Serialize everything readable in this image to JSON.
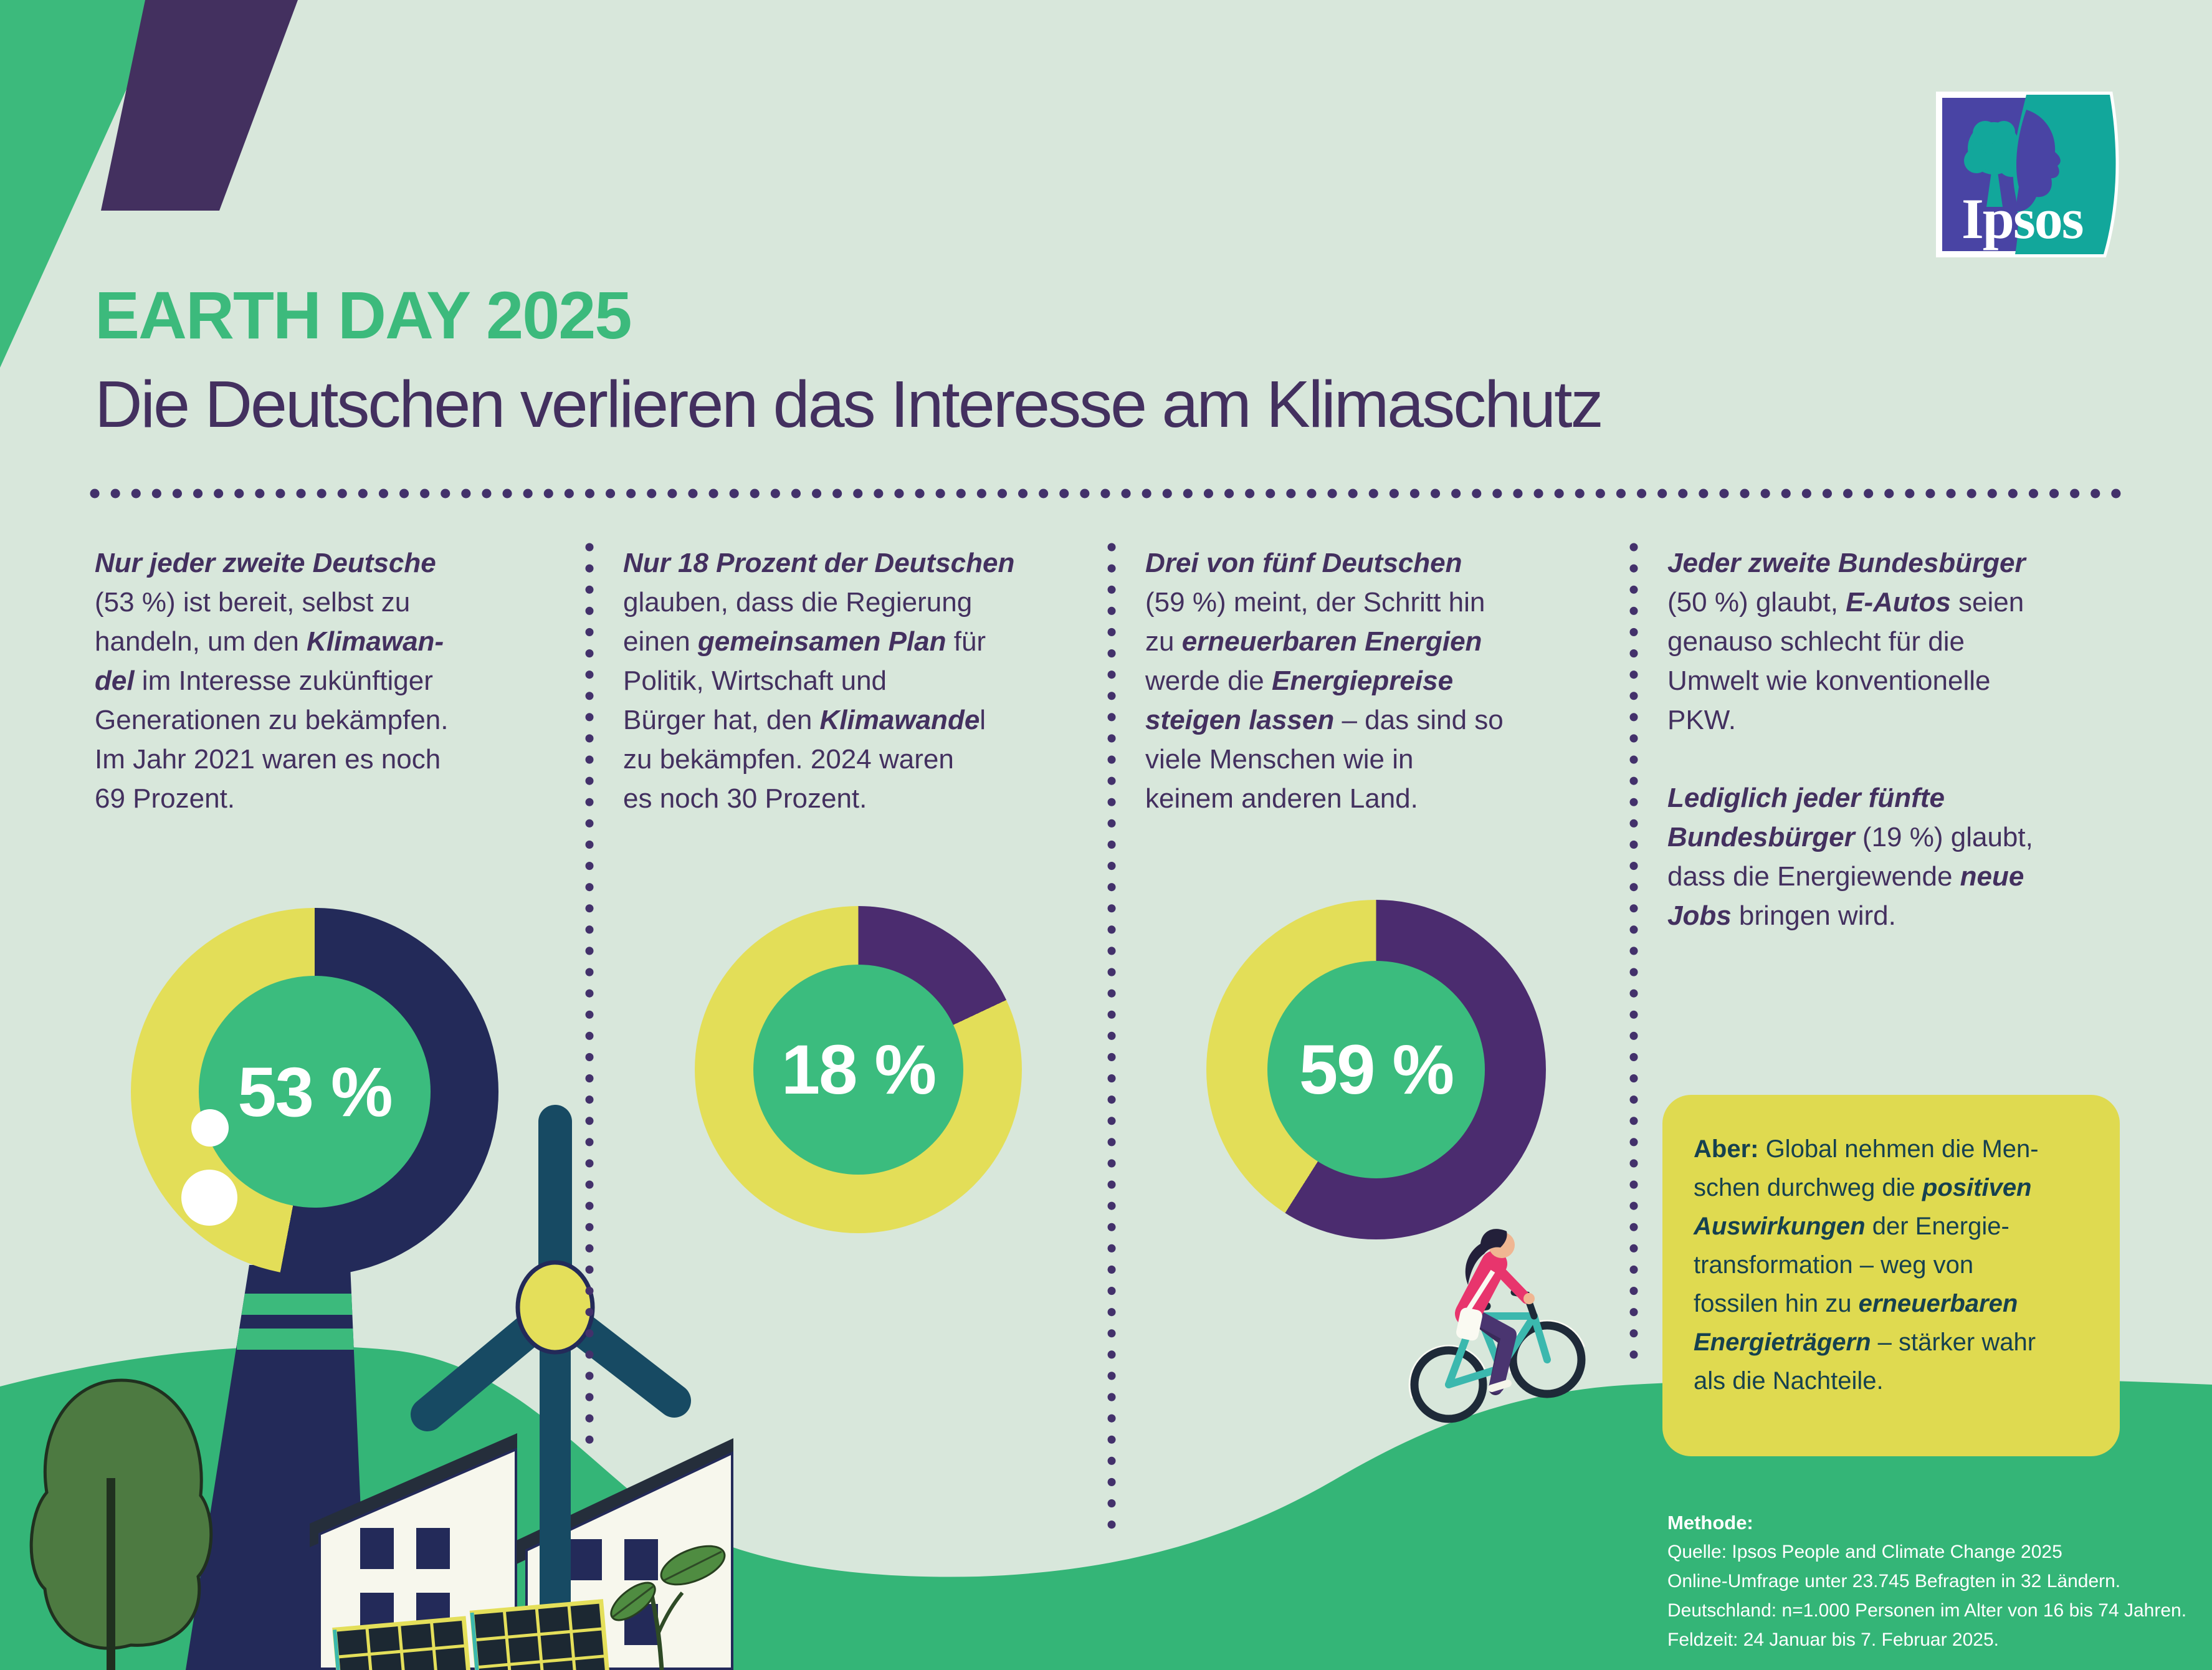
{
  "header": {
    "kicker": "EARTH DAY 2025",
    "headline": "Die Deutschen verlieren das Interesse am Klimaschutz"
  },
  "logo": {
    "brand": "Ipsos"
  },
  "colors": {
    "background": "#D8E7DB",
    "green": "#3CBA7C",
    "hill_green": "#34B577",
    "navy": "#232A59",
    "purple_text": "#43305F",
    "donut_purple": "#4B2C6F",
    "ring_yellow": "#E3DE58",
    "box_yellow": "#DFDA50",
    "box_text": "#16414F",
    "ipsos_indigo": "#4944A4",
    "ipsos_teal": "#12A79B"
  },
  "columns": [
    {
      "lines": [
        [
          {
            "t": "Nur jeder zweite Deutsche",
            "s": "bi"
          }
        ],
        [
          {
            "t": "(53 %) ist bereit, selbst zu"
          }
        ],
        [
          {
            "t": "handeln, um den "
          },
          {
            "t": "Klimawan-",
            "s": "bi"
          }
        ],
        [
          {
            "t": "del",
            "s": "bi"
          },
          {
            "t": " im Interesse zukünftiger"
          }
        ],
        [
          {
            "t": "Generationen zu bekämpfen."
          }
        ],
        [
          {
            "t": "Im Jahr 2021 waren es noch"
          }
        ],
        [
          {
            "t": "69 Prozent."
          }
        ]
      ]
    },
    {
      "lines": [
        [
          {
            "t": "Nur 18 Prozent der Deutschen",
            "s": "bi"
          }
        ],
        [
          {
            "t": "glauben, dass die Regierung"
          }
        ],
        [
          {
            "t": "einen "
          },
          {
            "t": "gemeinsamen Plan",
            "s": "bi"
          },
          {
            "t": " für"
          }
        ],
        [
          {
            "t": "Politik, Wirtschaft und"
          }
        ],
        [
          {
            "t": "Bürger hat, den "
          },
          {
            "t": "Klimawande",
            "s": "bi"
          },
          {
            "t": "l"
          }
        ],
        [
          {
            "t": "zu bekämpfen. 2024 waren"
          }
        ],
        [
          {
            "t": "es noch 30 Prozent."
          }
        ]
      ]
    },
    {
      "lines": [
        [
          {
            "t": "Drei von fünf Deutschen",
            "s": "bi"
          }
        ],
        [
          {
            "t": "(59 %) meint, der Schritt hin"
          }
        ],
        [
          {
            "t": "zu "
          },
          {
            "t": "erneuerbaren Energien",
            "s": "bi"
          }
        ],
        [
          {
            "t": "werde die "
          },
          {
            "t": "Energiepreise",
            "s": "bi"
          }
        ],
        [
          {
            "t": "steigen lassen",
            "s": "bi"
          },
          {
            "t": " – das sind so"
          }
        ],
        [
          {
            "t": "viele Menschen wie in"
          }
        ],
        [
          {
            "t": "keinem anderen Land."
          }
        ]
      ]
    },
    {
      "lines": [
        [
          {
            "t": "Jeder zweite Bundesbürger",
            "s": "bi"
          }
        ],
        [
          {
            "t": "(50 %) glaubt, "
          },
          {
            "t": "E-Autos",
            "s": "bi"
          },
          {
            "t": " seien"
          }
        ],
        [
          {
            "t": "genauso schlecht für die"
          }
        ],
        [
          {
            "t": "Umwelt wie konventionelle"
          }
        ],
        [
          {
            "t": "PKW."
          }
        ]
      ],
      "lines2": [
        [
          {
            "t": "Lediglich jeder fünfte",
            "s": "bi"
          }
        ],
        [
          {
            "t": "Bundesbürger",
            "s": "bi"
          },
          {
            "t": " (19 %) glaubt,"
          }
        ],
        [
          {
            "t": "dass die Energiewende "
          },
          {
            "t": "neue",
            "s": "bi"
          }
        ],
        [
          {
            "t": "Jobs",
            "s": "bi"
          },
          {
            "t": " bringen wird."
          }
        ]
      ]
    }
  ],
  "chart_data": [
    {
      "type": "pie",
      "values": [
        53,
        47
      ],
      "center_label": "53 %",
      "colors": {
        "value": "#232A59",
        "rest": "#E3DE58",
        "center": "#3BBC7E"
      }
    },
    {
      "type": "pie",
      "values": [
        18,
        82
      ],
      "center_label": "18 %",
      "colors": {
        "value": "#4B2C6F",
        "rest": "#E3DE58",
        "center": "#3BBC7E"
      }
    },
    {
      "type": "pie",
      "values": [
        59,
        41
      ],
      "center_label": "59 %",
      "colors": {
        "value": "#4B2C6F",
        "rest": "#E3DE58",
        "center": "#3BBC7E"
      }
    }
  ],
  "aber_box": {
    "lines": [
      [
        {
          "t": "Aber:",
          "s": "b"
        },
        {
          "t": " Global nehmen die Men-"
        }
      ],
      [
        {
          "t": "schen durchweg die "
        },
        {
          "t": "positiven",
          "s": "bi"
        }
      ],
      [
        {
          "t": "Auswirkungen",
          "s": "bi"
        },
        {
          "t": " der Energie-"
        }
      ],
      [
        {
          "t": "transformation – weg von"
        }
      ],
      [
        {
          "t": "fossilen hin zu "
        },
        {
          "t": "erneuerbaren",
          "s": "bi"
        }
      ],
      [
        {
          "t": "Energieträgern",
          "s": "bi"
        },
        {
          "t": " – stärker wahr"
        }
      ],
      [
        {
          "t": "als die Nachteile."
        }
      ]
    ]
  },
  "methode": {
    "heading": "Methode:",
    "lines": [
      "Quelle: Ipsos People and Climate Change 2025",
      "Online-Umfrage unter 23.745 Befragten in 32 Ländern.",
      "Deutschland: n=1.000 Personen im Alter von 16 bis 74 Jahren.",
      "Feldzeit: 24 Januar bis 7. Februar 2025."
    ]
  }
}
